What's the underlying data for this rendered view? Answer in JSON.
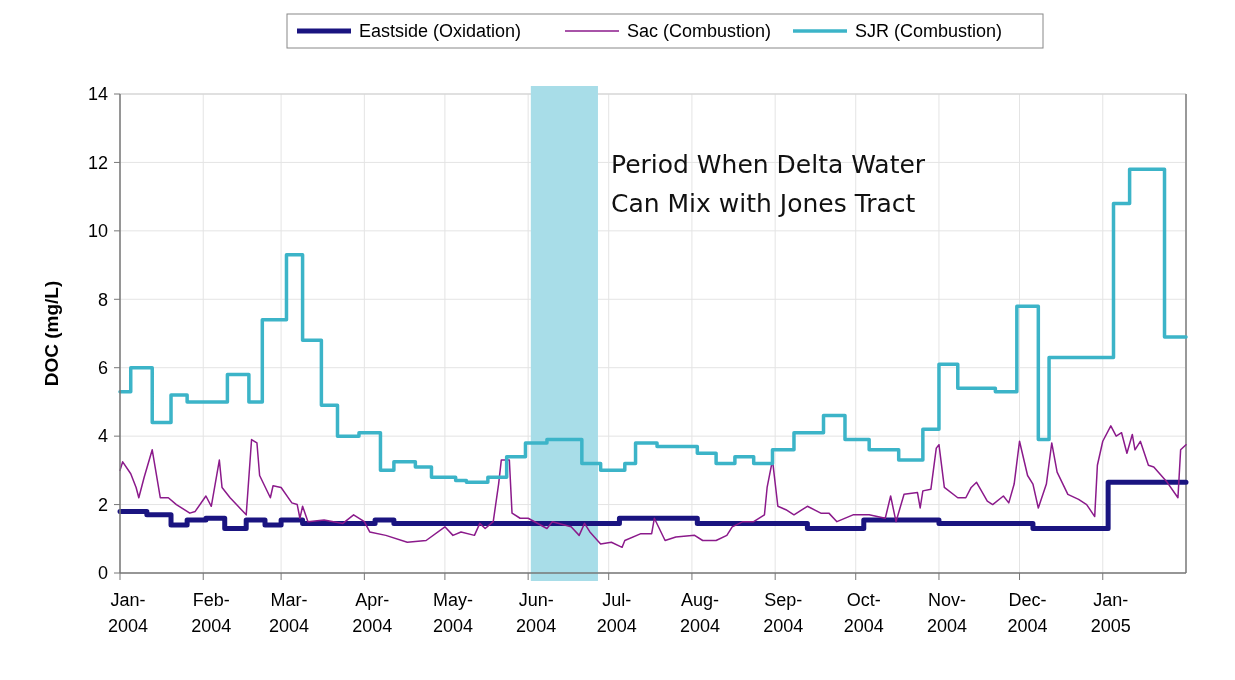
{
  "chart_data": {
    "type": "line",
    "ylabel": "DOC (mg/L)",
    "xlim": [
      "2004-01-01",
      "2005-02-01"
    ],
    "xticks": [
      {
        "value": "2004-01-01",
        "label": "Jan-\n2004"
      },
      {
        "value": "2004-02-01",
        "label": "Feb-\n2004"
      },
      {
        "value": "2004-03-01",
        "label": "Mar-\n2004"
      },
      {
        "value": "2004-04-01",
        "label": "Apr-\n2004"
      },
      {
        "value": "2004-05-01",
        "label": "May-\n2004"
      },
      {
        "value": "2004-06-01",
        "label": "Jun-\n2004"
      },
      {
        "value": "2004-07-01",
        "label": "Jul-\n2004"
      },
      {
        "value": "2004-08-01",
        "label": "Aug-\n2004"
      },
      {
        "value": "2004-09-01",
        "label": "Sep-\n2004"
      },
      {
        "value": "2004-10-01",
        "label": "Oct-\n2004"
      },
      {
        "value": "2004-11-01",
        "label": "Nov-\n2004"
      },
      {
        "value": "2004-12-01",
        "label": "Dec-\n2004"
      },
      {
        "value": "2005-01-01",
        "label": "Jan-\n2005"
      }
    ],
    "ylim": [
      0,
      14
    ],
    "yticks": [
      0,
      2,
      4,
      6,
      8,
      10,
      12,
      14
    ],
    "grid": true,
    "legend": "top",
    "marker": "none",
    "bands": [
      {
        "axis": "x",
        "from": "2004-06-02",
        "to": "2004-06-27",
        "label": "Period When Delta Water Can Mix with Jones Tract",
        "color": "#a8dde8"
      }
    ],
    "series": [
      {
        "name": "Eastside (Oxidation)",
        "type": "step",
        "color": "#1a1480",
        "x": [
          "2004-01-01",
          "2004-01-11",
          "2004-01-20",
          "2004-01-26",
          "2004-02-02",
          "2004-02-09",
          "2004-02-17",
          "2004-02-24",
          "2004-03-01",
          "2004-03-09",
          "2004-04-05",
          "2004-04-12",
          "2004-07-05",
          "2004-08-03",
          "2004-09-13",
          "2004-10-04",
          "2004-11-01",
          "2004-12-06",
          "2005-01-03",
          "2005-02-01"
        ],
        "values": [
          1.8,
          1.7,
          1.4,
          1.55,
          1.6,
          1.3,
          1.55,
          1.4,
          1.55,
          1.45,
          1.55,
          1.45,
          1.6,
          1.45,
          1.3,
          1.55,
          1.45,
          1.3,
          2.65,
          2.65
        ]
      },
      {
        "name": "Sac (Combustion)",
        "color": "#8b1a8b",
        "x": [
          "2004-01-01",
          "2004-01-02",
          "2004-01-05",
          "2004-01-07",
          "2004-01-08",
          "2004-01-10",
          "2004-01-13",
          "2004-01-16",
          "2004-01-19",
          "2004-01-22",
          "2004-01-27",
          "2004-01-29",
          "2004-02-02",
          "2004-02-04",
          "2004-02-07",
          "2004-02-08",
          "2004-02-11",
          "2004-02-14",
          "2004-02-17",
          "2004-02-19",
          "2004-02-21",
          "2004-02-22",
          "2004-02-26",
          "2004-02-27",
          "2004-03-01",
          "2004-03-05",
          "2004-03-07",
          "2004-03-08",
          "2004-03-09",
          "2004-03-11",
          "2004-03-17",
          "2004-03-24",
          "2004-03-28",
          "2004-04-01",
          "2004-04-03",
          "2004-04-09",
          "2004-04-17",
          "2004-04-24",
          "2004-05-01",
          "2004-05-04",
          "2004-05-07",
          "2004-05-12",
          "2004-05-14",
          "2004-05-16",
          "2004-05-19",
          "2004-05-21",
          "2004-05-22",
          "2004-05-25",
          "2004-05-26",
          "2004-05-29",
          "2004-06-01",
          "2004-06-08",
          "2004-06-10",
          "2004-06-17",
          "2004-06-20",
          "2004-06-22",
          "2004-06-24",
          "2004-06-28",
          "2004-07-02",
          "2004-07-06",
          "2004-07-07",
          "2004-07-13",
          "2004-07-17",
          "2004-07-18",
          "2004-07-22",
          "2004-07-26",
          "2004-08-02",
          "2004-08-05",
          "2004-08-10",
          "2004-08-14",
          "2004-08-16",
          "2004-08-20",
          "2004-08-24",
          "2004-08-28",
          "2004-08-29",
          "2004-08-31",
          "2004-09-02",
          "2004-09-05",
          "2004-09-08",
          "2004-09-13",
          "2004-09-18",
          "2004-09-21",
          "2004-09-24",
          "2004-09-30",
          "2004-10-06",
          "2004-10-12",
          "2004-10-14",
          "2004-10-16",
          "2004-10-19",
          "2004-10-24",
          "2004-10-25",
          "2004-10-26",
          "2004-10-29",
          "2004-10-31",
          "2004-11-01",
          "2004-11-03",
          "2004-11-08",
          "2004-11-11",
          "2004-11-13",
          "2004-11-15",
          "2004-11-19",
          "2004-11-21",
          "2004-11-25",
          "2004-11-27",
          "2004-11-29",
          "2004-12-01",
          "2004-12-04",
          "2004-12-06",
          "2004-12-08",
          "2004-12-11",
          "2004-12-13",
          "2004-12-15",
          "2004-12-19",
          "2004-12-23",
          "2004-12-26",
          "2004-12-29",
          "2004-12-30",
          "2005-01-01",
          "2005-01-04",
          "2005-01-06",
          "2005-01-08",
          "2005-01-10",
          "2005-01-12",
          "2005-01-13",
          "2005-01-15",
          "2005-01-18",
          "2005-01-20",
          "2005-01-25",
          "2005-01-29",
          "2005-01-30",
          "2005-02-01"
        ],
        "values": [
          3.0,
          3.25,
          2.9,
          2.5,
          2.2,
          2.8,
          3.6,
          2.2,
          2.2,
          2.0,
          1.75,
          1.8,
          2.25,
          1.95,
          3.3,
          2.5,
          2.2,
          1.95,
          1.7,
          3.9,
          3.8,
          2.85,
          2.2,
          2.55,
          2.5,
          2.05,
          2.0,
          1.6,
          1.95,
          1.5,
          1.55,
          1.45,
          1.7,
          1.5,
          1.2,
          1.1,
          0.9,
          0.95,
          1.35,
          1.1,
          1.2,
          1.1,
          1.45,
          1.3,
          1.5,
          2.6,
          3.3,
          3.3,
          1.75,
          1.6,
          1.6,
          1.3,
          1.5,
          1.35,
          1.1,
          1.45,
          1.2,
          0.85,
          0.9,
          0.75,
          0.95,
          1.15,
          1.15,
          1.6,
          0.95,
          1.05,
          1.1,
          0.95,
          0.95,
          1.1,
          1.35,
          1.5,
          1.5,
          1.7,
          2.5,
          3.3,
          1.95,
          1.85,
          1.7,
          1.95,
          1.75,
          1.75,
          1.5,
          1.7,
          1.7,
          1.6,
          2.25,
          1.5,
          2.3,
          2.35,
          1.9,
          2.4,
          2.45,
          3.65,
          3.75,
          2.5,
          2.2,
          2.2,
          2.5,
          2.65,
          2.1,
          2.0,
          2.25,
          2.05,
          2.6,
          3.85,
          2.85,
          2.6,
          1.9,
          2.6,
          3.8,
          2.95,
          2.3,
          2.15,
          2.0,
          1.65,
          3.15,
          3.85,
          4.3,
          4.0,
          4.1,
          3.5,
          4.05,
          3.6,
          3.85,
          3.15,
          3.1,
          2.65,
          2.2,
          3.6,
          3.75
        ]
      },
      {
        "name": "SJR (Combustion)",
        "type": "step",
        "color": "#3cb4c8",
        "x": [
          "2004-01-01",
          "2004-01-05",
          "2004-01-13",
          "2004-01-20",
          "2004-01-26",
          "2004-02-10",
          "2004-02-18",
          "2004-02-23",
          "2004-03-03",
          "2004-03-09",
          "2004-03-16",
          "2004-03-22",
          "2004-03-30",
          "2004-04-07",
          "2004-04-12",
          "2004-04-20",
          "2004-04-26",
          "2004-05-05",
          "2004-05-09",
          "2004-05-17",
          "2004-05-24",
          "2004-05-31",
          "2004-06-08",
          "2004-06-21",
          "2004-06-28",
          "2004-07-07",
          "2004-07-11",
          "2004-07-19",
          "2004-08-03",
          "2004-08-10",
          "2004-08-17",
          "2004-08-24",
          "2004-08-31",
          "2004-09-08",
          "2004-09-19",
          "2004-09-27",
          "2004-10-06",
          "2004-10-17",
          "2004-10-26",
          "2004-11-01",
          "2004-11-08",
          "2004-11-22",
          "2004-11-30",
          "2004-12-08",
          "2004-12-12",
          "2005-01-05",
          "2005-01-11",
          "2005-01-24",
          "2005-02-01"
        ],
        "values": [
          5.3,
          6.0,
          4.4,
          5.2,
          5.0,
          5.8,
          5.0,
          7.4,
          9.3,
          6.8,
          4.9,
          4.0,
          4.1,
          3.0,
          3.25,
          3.1,
          2.8,
          2.7,
          2.65,
          2.8,
          3.4,
          3.8,
          3.9,
          3.2,
          3.0,
          3.2,
          3.8,
          3.7,
          3.5,
          3.2,
          3.4,
          3.2,
          3.6,
          4.1,
          4.6,
          3.9,
          3.6,
          3.3,
          4.2,
          6.1,
          5.4,
          5.3,
          7.8,
          3.9,
          6.3,
          10.8,
          11.8,
          6.9,
          6.9
        ]
      }
    ]
  }
}
